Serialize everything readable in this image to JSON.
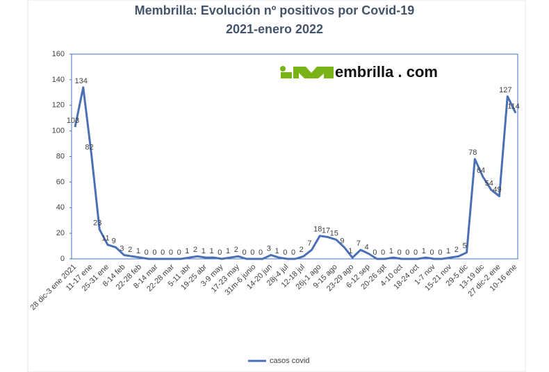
{
  "chart_data": {
    "type": "line",
    "title": "Membrilla: Evolución nº positivos por Covid-19",
    "subtitle": "2021-enero 2022",
    "watermark": "embrilla . com",
    "categories": [
      "28 dic-3 ene 2021",
      null,
      "11-17 ene",
      null,
      "25-31 ene",
      null,
      "8-14 feb",
      null,
      "22-28 feb",
      null,
      "8-14 mar",
      null,
      "22-28 mar",
      null,
      "5-11 abr",
      null,
      "19-25 abr",
      null,
      "3-9 may",
      null,
      "17-23 may",
      null,
      "31m-6 junio",
      null,
      "14-20 jun",
      null,
      "28j-4 jul",
      null,
      "12-18 jul",
      null,
      "26j-1 ago",
      null,
      "9-15 ago",
      null,
      "23-29 ago",
      null,
      "6-12 sep",
      null,
      "20-26 spt",
      null,
      "4-10 oct",
      null,
      "18-24 oct",
      null,
      "1-7 nov",
      null,
      "15-21 nov",
      null,
      "29-5 dic",
      null,
      "13-19 dic",
      null,
      "27 dic-2 ene",
      null,
      "10-16 ene"
    ],
    "series": [
      {
        "name": "casos covid",
        "color": "#4a6fb5",
        "values": [
          103,
          134,
          82,
          23,
          11,
          9,
          3,
          2,
          1,
          0,
          0,
          0,
          0,
          0,
          1,
          2,
          1,
          1,
          0,
          1,
          2,
          0,
          0,
          0,
          3,
          1,
          0,
          0,
          2,
          7,
          18,
          17,
          15,
          9,
          1,
          7,
          4,
          0,
          0,
          1,
          0,
          0,
          0,
          1,
          0,
          0,
          1,
          2,
          5,
          78,
          64,
          54,
          49,
          127,
          114
        ]
      }
    ],
    "ylim": [
      0,
      160
    ],
    "yticks": [
      0,
      20,
      40,
      60,
      80,
      100,
      120,
      140,
      160
    ],
    "grid": false,
    "legend": "bottom"
  }
}
